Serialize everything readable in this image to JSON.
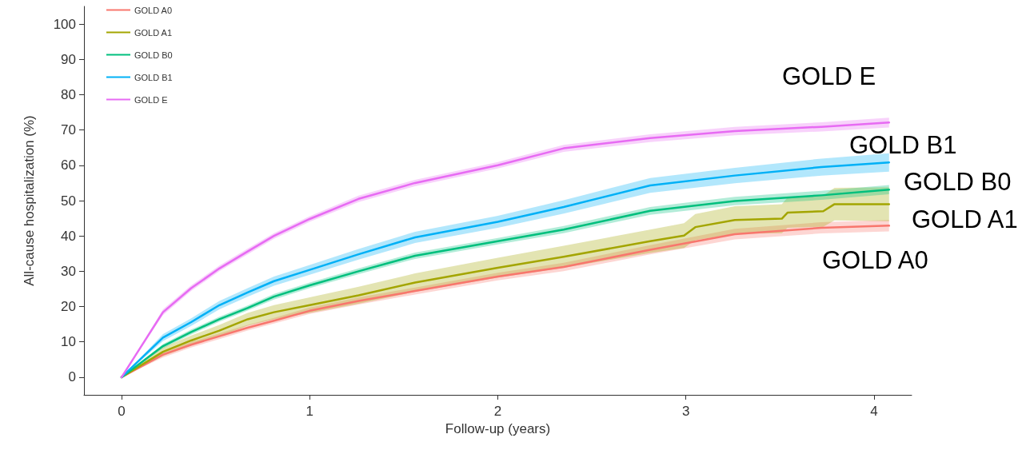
{
  "chart_data": {
    "type": "line",
    "xlabel": "Follow-up (years)",
    "ylabel": "All-cause hospitalization (%)",
    "x": [
      0,
      0.22,
      0.37,
      0.52,
      0.67,
      0.81,
      1,
      1.26,
      1.56,
      2,
      2.35,
      2.81,
      3.26,
      3.72,
      4.08
    ],
    "xlim": [
      -0.2,
      4.2
    ],
    "xticks": [
      0,
      1,
      2,
      3,
      4
    ],
    "ylim": [
      -5,
      105
    ],
    "yticks": [
      0,
      10,
      20,
      30,
      40,
      50,
      60,
      70,
      80,
      90,
      100
    ],
    "grid": false,
    "legend": "top left",
    "marker": "none",
    "line_style": "solid",
    "series": [
      {
        "name": "GOLD A0",
        "color": "#f8766d",
        "values": [
          0,
          6.4,
          9.2,
          11.6,
          14,
          16,
          18.8,
          21.6,
          24.4,
          28.5,
          31.2,
          36.1,
          40.5,
          42.3,
          42.9
        ],
        "lower": [
          0,
          5.6,
          8.4,
          10.8,
          13.2,
          15.2,
          17.9,
          20.6,
          23.4,
          27.4,
          30,
          34.8,
          39,
          40.7,
          41.3
        ],
        "upper": [
          0,
          7.2,
          10,
          12.4,
          14.8,
          16.8,
          19.7,
          22.6,
          25.4,
          29.6,
          32.4,
          37.4,
          42,
          43.9,
          44.5
        ]
      },
      {
        "name": "GOLD A1",
        "color": "#a3a500",
        "x": [
          0,
          0.22,
          0.37,
          0.52,
          0.67,
          0.81,
          1,
          1.26,
          1.56,
          2,
          2.35,
          2.81,
          2.99,
          3.05,
          3.26,
          3.51,
          3.54,
          3.73,
          3.79,
          4.08
        ],
        "values": [
          0,
          7.2,
          10.4,
          13.2,
          16.4,
          18.4,
          20.4,
          23.2,
          26.8,
          31,
          34.1,
          38.5,
          40.1,
          42.5,
          44.5,
          44.9,
          46.6,
          47,
          49,
          49
        ],
        "lower": [
          0,
          6,
          9,
          11.6,
          14.6,
          16.4,
          18.2,
          20.8,
          24.2,
          28.2,
          31,
          35.2,
          36.6,
          38.8,
          40.6,
          40.8,
          42.3,
          42.6,
          44.4,
          44.2
        ],
        "upper": [
          0,
          8.4,
          11.8,
          14.8,
          18.2,
          20.4,
          22.6,
          25.6,
          29.4,
          33.8,
          37.2,
          41.8,
          43.6,
          46.2,
          48.4,
          49,
          50.9,
          51.4,
          53.6,
          53.8
        ]
      },
      {
        "name": "GOLD B0",
        "color": "#00bf7d",
        "values": [
          0,
          8.8,
          12.8,
          16.4,
          19.6,
          22.8,
          26,
          30,
          34.4,
          38.5,
          41.8,
          47.1,
          49.9,
          51.5,
          53.1
        ],
        "lower": [
          0,
          8.2,
          12.1,
          15.7,
          18.9,
          22,
          25.2,
          29.2,
          33.5,
          37.6,
          40.8,
          46,
          48.7,
          50.2,
          51.8
        ],
        "upper": [
          0,
          9.4,
          13.5,
          17.1,
          20.3,
          23.6,
          26.8,
          30.8,
          35.3,
          39.4,
          42.8,
          48.2,
          51.1,
          52.8,
          54.4
        ]
      },
      {
        "name": "GOLD B1",
        "color": "#00b0f6",
        "values": [
          0,
          11.2,
          15.6,
          20.4,
          24,
          27.2,
          30.4,
          34.8,
          39.6,
          44,
          48.2,
          54.3,
          57.1,
          59.5,
          60.8
        ],
        "lower": [
          0,
          10.2,
          14.5,
          19.2,
          22.8,
          25.9,
          29,
          33.3,
          38,
          42.3,
          46.3,
          52.2,
          54.9,
          57.1,
          58.2
        ],
        "upper": [
          0,
          12.2,
          16.7,
          21.6,
          25.2,
          28.5,
          31.8,
          36.3,
          41.2,
          45.7,
          50.1,
          56.4,
          59.3,
          61.9,
          63.4
        ]
      },
      {
        "name": "GOLD E",
        "color": "#e76bf3",
        "values": [
          0,
          18.4,
          25.2,
          30.8,
          35.6,
          40,
          44.8,
          50.5,
          55,
          60,
          64.8,
          67.7,
          69.7,
          70.9,
          72.1
        ],
        "lower": [
          0,
          17.6,
          24.4,
          30,
          34.8,
          39.2,
          44,
          49.6,
          54.1,
          59.1,
          63.8,
          66.6,
          68.5,
          69.6,
          70.7
        ],
        "upper": [
          0,
          19.2,
          26,
          31.6,
          36.4,
          40.8,
          45.6,
          51.4,
          55.9,
          60.9,
          65.8,
          68.8,
          70.9,
          72.2,
          73.5
        ]
      }
    ],
    "annotations": [
      "GOLD E",
      "GOLD B1",
      "GOLD B0",
      "GOLD A1",
      "GOLD A0"
    ]
  }
}
